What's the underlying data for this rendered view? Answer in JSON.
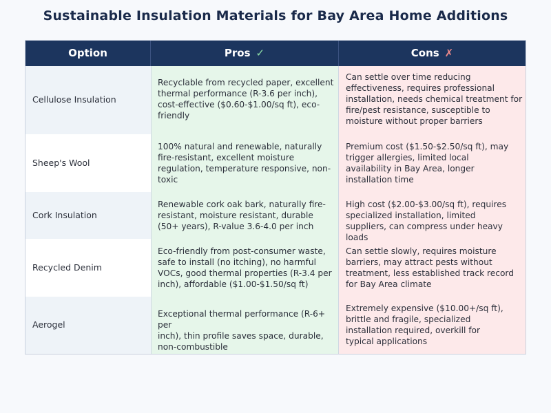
{
  "title": "Sustainable Insulation Materials for Bay Area Home Additions",
  "headers": {
    "option": "Option",
    "pros": "Pros",
    "pros_icon": "✓",
    "cons": "Cons",
    "cons_icon": "✗"
  },
  "colors": {
    "header_bg": "#1c355e",
    "pros_bg": "#e6f6ea",
    "cons_bg": "#fde9ea",
    "option_shade_bg": "#eef3f8"
  },
  "rows": [
    {
      "option": "Cellulose Insulation",
      "pros": [
        "Recyclable from recycled paper, excellent",
        "thermal performance (R-3.6 per inch),",
        "cost-effective ($0.60-$1.00/sq ft), eco-",
        "friendly"
      ],
      "cons": [
        "Can settle over time reducing",
        "effectiveness, requires professional",
        "installation, needs chemical treatment for",
        "fire/pest resistance, susceptible to",
        "moisture without proper barriers"
      ]
    },
    {
      "option": "Sheep's Wool",
      "pros": [
        "100% natural and renewable, naturally",
        "fire-resistant, excellent moisture",
        "regulation, temperature responsive, non-",
        "toxic"
      ],
      "cons": [
        "Premium cost ($1.50-$2.50/sq ft), may",
        "trigger allergies, limited local",
        "availability in Bay Area, longer",
        "installation time"
      ]
    },
    {
      "option": "Cork Insulation",
      "pros": [
        "Renewable cork oak bark, naturally fire-",
        "resistant, moisture resistant, durable",
        "(50+ years), R-value 3.6-4.0 per inch"
      ],
      "cons": [
        "High cost ($2.00-$3.00/sq ft), requires",
        "specialized installation, limited",
        "suppliers, can compress under heavy loads"
      ]
    },
    {
      "option": "Recycled Denim",
      "pros": [
        "Eco-friendly from post-consumer waste,",
        "safe to install (no itching), no harmful",
        "VOCs, good thermal properties (R-3.4 per",
        "inch), affordable ($1.00-$1.50/sq ft)"
      ],
      "cons": [
        "Can settle slowly, requires moisture",
        "barriers, may attract pests without",
        "treatment, less established track record",
        "for Bay Area climate"
      ]
    },
    {
      "option": "Aerogel",
      "pros": [
        "Exceptional thermal performance (R-6+ per",
        "inch), thin profile saves space, durable,",
        "non-combustible"
      ],
      "cons": [
        "Extremely expensive ($10.00+/sq ft),",
        "brittle and fragile, specialized",
        "installation required, overkill for",
        "typical applications"
      ]
    }
  ]
}
